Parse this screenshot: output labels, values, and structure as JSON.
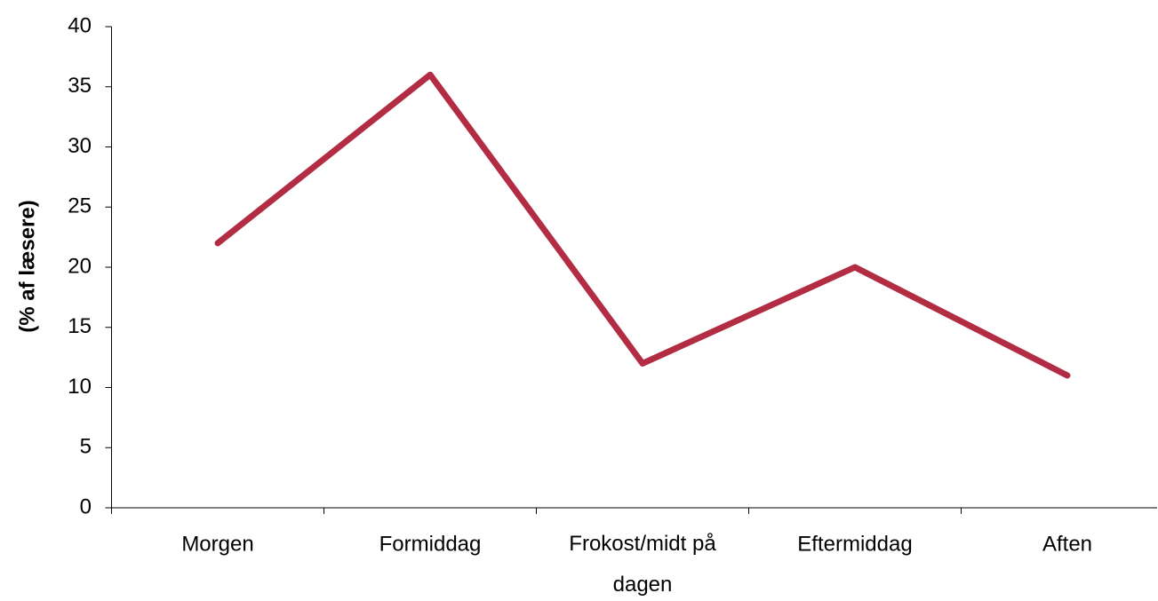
{
  "chart_data": {
    "type": "line",
    "y_label": "(% af læsere)",
    "categories": [
      "Morgen",
      "Formiddag",
      "Frokost/midt på dagen",
      "Eftermiddag",
      "Aften"
    ],
    "series": [
      {
        "name": null,
        "color": "#b22d44",
        "values": [
          22,
          36,
          12,
          20,
          11
        ]
      }
    ],
    "ylim": [
      0,
      40
    ],
    "yticks": [
      0,
      5,
      10,
      15,
      20,
      25,
      30,
      35,
      40
    ],
    "grid": false,
    "legend": false
  }
}
